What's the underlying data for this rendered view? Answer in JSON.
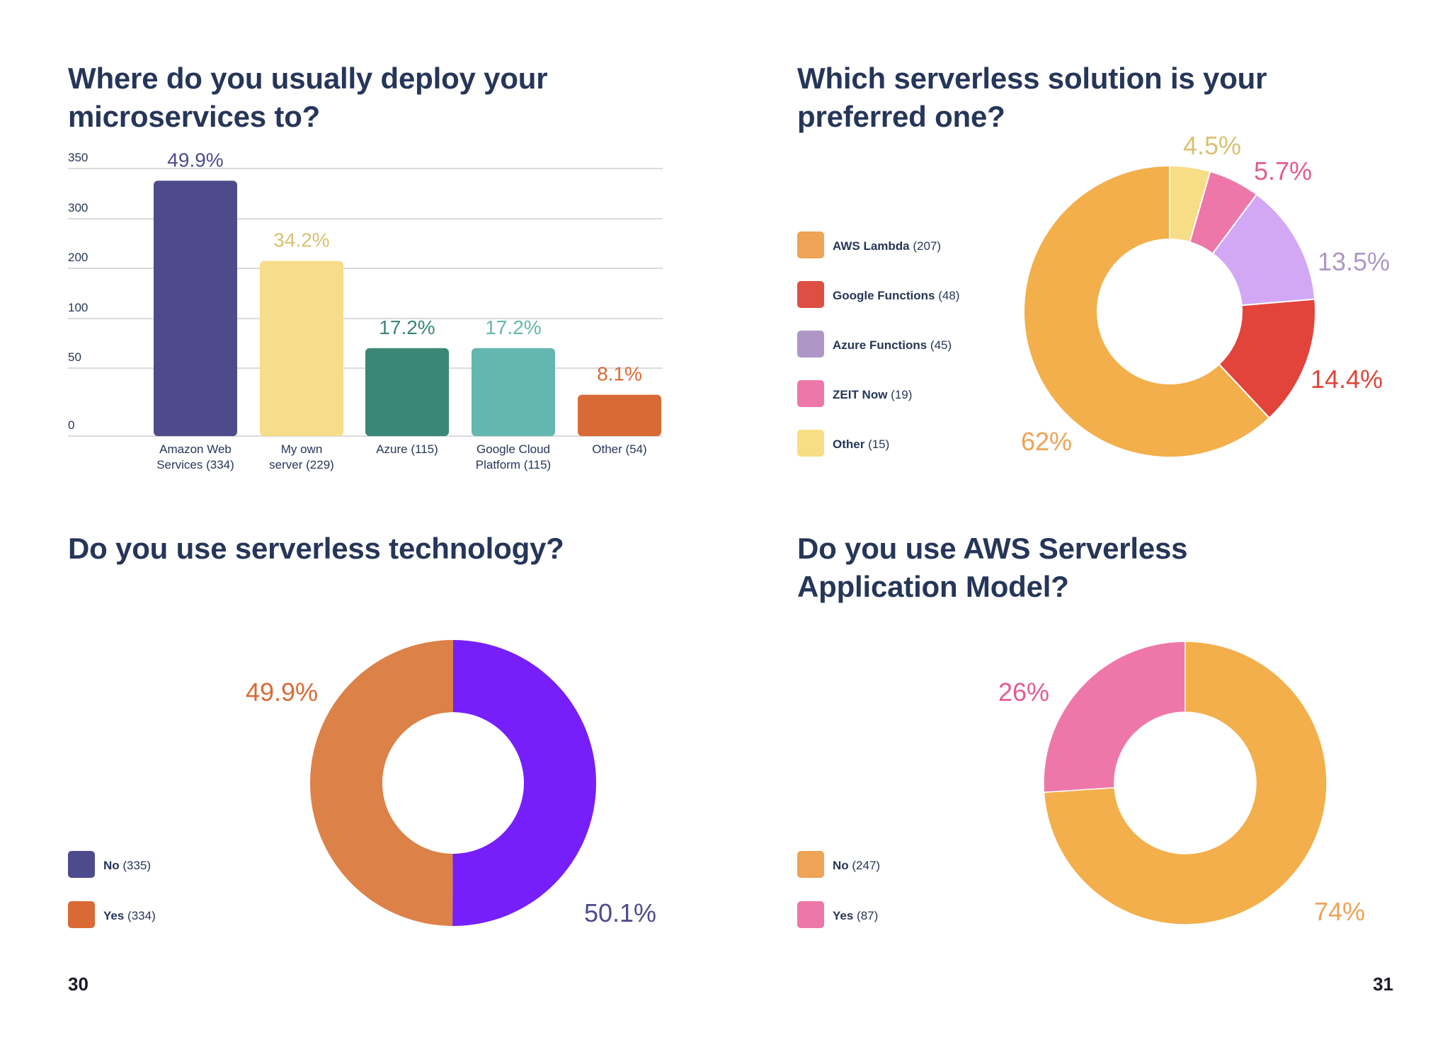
{
  "page_numbers": {
    "left": "30",
    "right": "31"
  },
  "chart_data": [
    {
      "type": "bar",
      "title": "Where do you usually deploy your microservices to?",
      "y_ticks": [
        "350",
        "300",
        "200",
        "100",
        "50",
        "0"
      ],
      "categories": [
        {
          "lines": [
            "Amazon Web",
            "Services (334)"
          ],
          "value": 334,
          "percent": "49.9%",
          "color": "#4e4b8c",
          "label_color": "#4e4b8c"
        },
        {
          "lines": [
            "My own",
            "server (229)"
          ],
          "value": 229,
          "percent": "34.2%",
          "color": "#f6dd8a",
          "label_color": "#d9c172"
        },
        {
          "lines": [
            "Azure (115)"
          ],
          "value": 115,
          "percent": "17.2%",
          "color": "#3b8777",
          "label_color": "#3b8777"
        },
        {
          "lines": [
            "Google Cloud",
            "Platform (115)"
          ],
          "value": 115,
          "percent": "17.2%",
          "color": "#63b7ae",
          "label_color": "#63b7ae"
        },
        {
          "lines": [
            "Other (54)"
          ],
          "value": 54,
          "percent": "8.1%",
          "color": "#d96a35",
          "label_color": "#d96a35"
        }
      ]
    },
    {
      "type": "pie",
      "title": "Which serverless solution is your preferred one?",
      "slices": [
        {
          "name": "Other (15)",
          "value": 15,
          "percent": "4.5%",
          "color": "#f7dd86",
          "legend_color": "#f7dd86",
          "label_color": "#d9c172"
        },
        {
          "name": "ZEIT Now (19)",
          "value": 19,
          "percent": "5.7%",
          "color": "#ec77a8",
          "legend_color": "#ec77a8",
          "label_color": "#e35b93"
        },
        {
          "name": "Azure Functions (45)",
          "value": 45,
          "percent": "13.5%",
          "color": "#d2a8f5",
          "legend_color": "#ae96c6",
          "label_color": "#ae96c6"
        },
        {
          "name": "Google Functions (48)",
          "value": 48,
          "percent": "14.4%",
          "color": "#e2433b",
          "legend_color": "#dd4f43",
          "label_color": "#e0453b"
        },
        {
          "name": "AWS Lambda (207)",
          "value": 207,
          "percent": "62%",
          "color": "#f3af4b",
          "legend_color": "#eea356",
          "label_color": "#eea356"
        }
      ],
      "legend_order": [
        "AWS Lambda (207)",
        "Google Functions (48)",
        "Azure Functions (45)",
        "ZEIT Now (19)",
        "Other (15)"
      ]
    },
    {
      "type": "pie",
      "title": "Do you use serverless technology?",
      "slices": [
        {
          "name": "No (335)",
          "value": 335,
          "percent": "50.1%",
          "color": "#761ffa",
          "legend_color": "#4e4b8c",
          "label_color": "#4e4b8c"
        },
        {
          "name": "Yes (334)",
          "value": 334,
          "percent": "49.9%",
          "color": "#dc8147",
          "legend_color": "#d96a35",
          "label_color": "#d96a35"
        }
      ]
    },
    {
      "type": "pie",
      "title": "Do you use AWS Serverless Application Model?",
      "slices": [
        {
          "name": "No (247)",
          "value": 247,
          "percent": "74%",
          "color": "#f3af4b",
          "legend_color": "#eea356",
          "label_color": "#eea356"
        },
        {
          "name": "Yes (87)",
          "value": 87,
          "percent": "26%",
          "color": "#ee77a9",
          "legend_color": "#ec77a8",
          "label_color": "#e35b93"
        }
      ]
    }
  ]
}
